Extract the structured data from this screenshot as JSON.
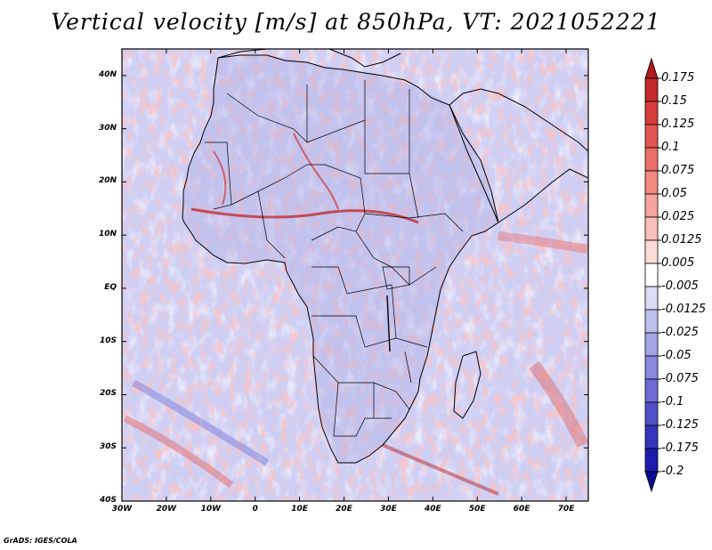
{
  "title": "Vertical velocity [m/s] at 850hPa, VT: 2021052221",
  "footer": "GrADS: IGES/COLA",
  "map": {
    "region": "Africa and surrounding oceans",
    "lon_range": [
      -30,
      75
    ],
    "lat_range": [
      -40,
      45
    ],
    "lat_ticks": [
      {
        "value": 40,
        "label": "40N"
      },
      {
        "value": 30,
        "label": "30N"
      },
      {
        "value": 20,
        "label": "20N"
      },
      {
        "value": 10,
        "label": "10N"
      },
      {
        "value": 0,
        "label": "EQ"
      },
      {
        "value": -10,
        "label": "10S"
      },
      {
        "value": -20,
        "label": "20S"
      },
      {
        "value": -30,
        "label": "30S"
      },
      {
        "value": -40,
        "label": "40S"
      }
    ],
    "lon_ticks": [
      {
        "value": -30,
        "label": "30W"
      },
      {
        "value": -20,
        "label": "20W"
      },
      {
        "value": -10,
        "label": "10W"
      },
      {
        "value": 0,
        "label": "0"
      },
      {
        "value": 10,
        "label": "10E"
      },
      {
        "value": 20,
        "label": "20E"
      },
      {
        "value": 30,
        "label": "30E"
      },
      {
        "value": 40,
        "label": "40E"
      },
      {
        "value": 50,
        "label": "50E"
      },
      {
        "value": 60,
        "label": "60E"
      },
      {
        "value": 70,
        "label": "70E"
      }
    ]
  },
  "colorbar": {
    "labels": [
      "0.175",
      "0.15",
      "0.125",
      "0.1",
      "0.075",
      "0.05",
      "0.025",
      "0.0125",
      "0.005",
      "-0.005",
      "-0.0125",
      "-0.025",
      "-0.05",
      "-0.075",
      "-0.1",
      "-0.125",
      "-0.175",
      "-0.2"
    ],
    "colors": [
      "#b01a20",
      "#c42a2c",
      "#d63c3a",
      "#e25450",
      "#ec6e68",
      "#f28a82",
      "#f6a49c",
      "#f9c0b8",
      "#fcdcd6",
      "#ffffff",
      "#dcdcf6",
      "#c0c0ee",
      "#a4a4e6",
      "#8888de",
      "#6c6cd4",
      "#5050c8",
      "#3434bc",
      "#1c1cac",
      "#0a0a90"
    ]
  }
}
